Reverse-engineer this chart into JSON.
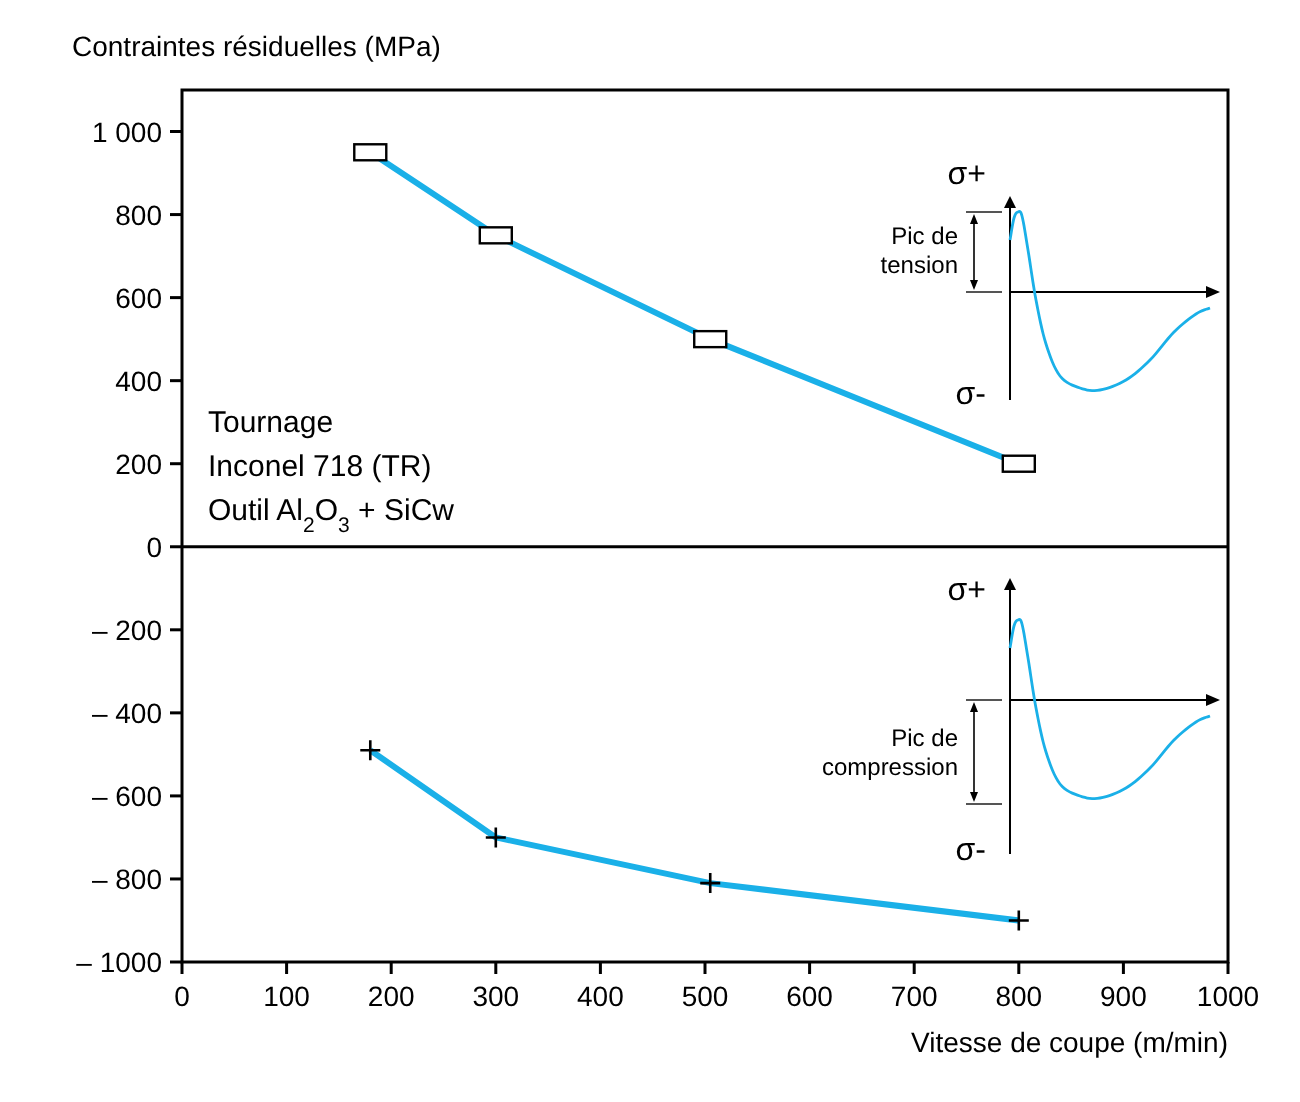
{
  "chart_data": {
    "type": "line",
    "xlabel": "Vitesse de coupe (m/min)",
    "ylabel": "Contraintes résiduelles (MPa)",
    "x": [
      180,
      300,
      505,
      800
    ],
    "series": [
      {
        "color": "#1ab0e8",
        "marker": "square",
        "values": [
          950,
          750,
          500,
          200
        ]
      },
      {
        "color": "#1ab0e8",
        "marker": "cross",
        "values": [
          -490,
          -700,
          -810,
          -900
        ]
      }
    ],
    "xlim": [
      0,
      1000
    ],
    "xticks": [
      0,
      100,
      200,
      300,
      400,
      500,
      600,
      700,
      800,
      900,
      1000
    ],
    "ylim": [
      -1000,
      1100
    ],
    "yticks": [
      {
        "value": 1000,
        "label": "1 000"
      },
      800,
      600,
      400,
      200,
      0,
      {
        "value": -200,
        "label": "– 200"
      },
      {
        "value": -400,
        "label": "– 400"
      },
      {
        "value": -600,
        "label": "– 600"
      },
      {
        "value": -800,
        "label": "– 800"
      },
      {
        "value": -1000,
        "label": "– 1000"
      }
    ],
    "ref_lines": [
      {
        "axis": "y",
        "value": 0,
        "color": "#000000"
      }
    ],
    "line_style": "solid",
    "annotations": [
      "Tournage",
      "Inconel 718 (TR)",
      "Outil Al$_{2}$O$_{3}$ + SiCw",
      "σ+",
      "Pic de\ntension",
      "σ-",
      "σ+",
      "Pic de\ncompression",
      "σ-"
    ]
  }
}
